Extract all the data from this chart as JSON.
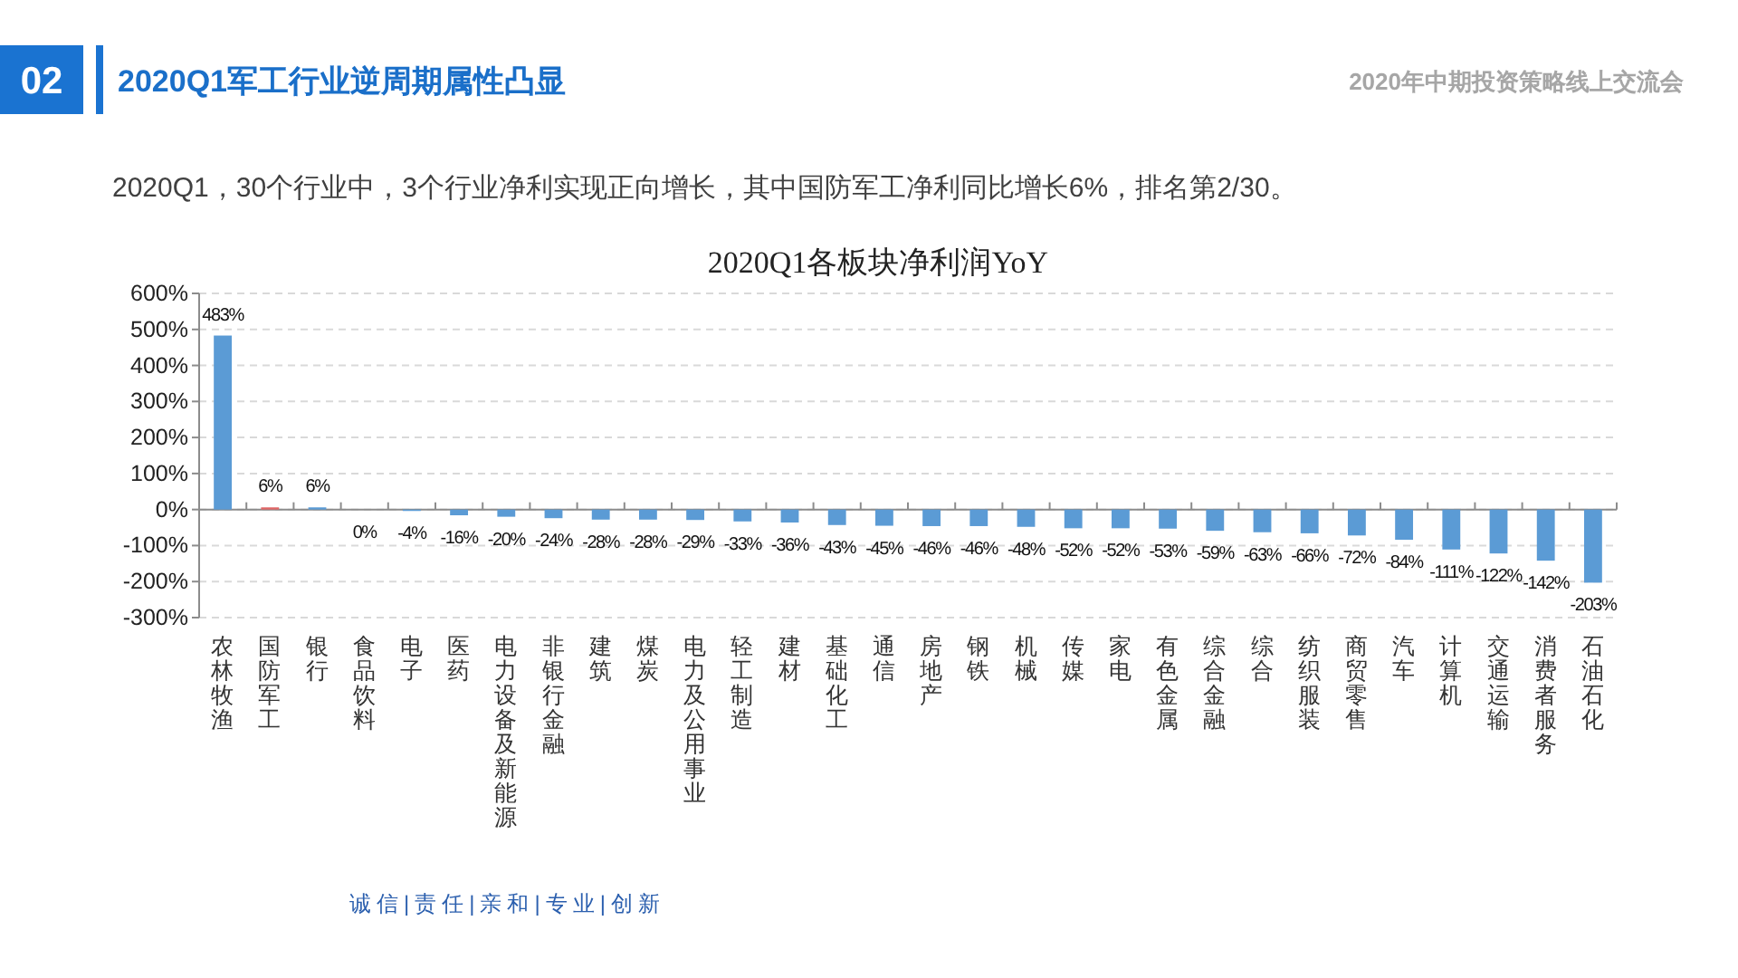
{
  "chart_data": {
    "type": "bar",
    "title": "2020Q1各板块净利润YoY",
    "subtitle": "2020Q1，30个行业中，3个行业净利实现正向增长，其中国防军工净利同比增长6%，排名第2/30。",
    "annotations": [
      "02",
      "2020Q1军工行业逆周期属性凸显",
      "2020年中期投资策略线上交流会",
      "诚信|责任|亲和|专业|创新"
    ],
    "categories": [
      "农林牧渔",
      "国防军工",
      "银行",
      "食品饮料",
      "电子",
      "医药",
      "电力设备及新能源",
      "非银行金融",
      "建筑",
      "煤炭",
      "电力及公用事业",
      "轻工制造",
      "建材",
      "基础化工",
      "通信",
      "房地产",
      "钢铁",
      "机械",
      "传媒",
      "家电",
      "有色金属",
      "综合金融",
      "综合",
      "纺织服装",
      "商贸零售",
      "汽车",
      "计算机",
      "交通运输",
      "消费者服务",
      "石油石化"
    ],
    "values": [
      483,
      6,
      6,
      0,
      -4,
      -16,
      -20,
      -24,
      -28,
      -28,
      -29,
      -33,
      -36,
      -43,
      -45,
      -46,
      -46,
      -48,
      -52,
      -52,
      -53,
      -59,
      -63,
      -66,
      -72,
      -84,
      -111,
      -122,
      -142,
      -203
    ],
    "colors": [
      "#5b9bd5",
      "#e06666",
      "#5b9bd5",
      null,
      "#5b9bd5",
      "#5b9bd5",
      "#5b9bd5",
      "#5b9bd5",
      "#5b9bd5",
      "#5b9bd5",
      "#5b9bd5",
      "#5b9bd5",
      "#5b9bd5",
      "#5b9bd5",
      "#5b9bd5",
      "#5b9bd5",
      "#5b9bd5",
      "#5b9bd5",
      "#5b9bd5",
      "#5b9bd5",
      "#5b9bd5",
      "#5b9bd5",
      "#5b9bd5",
      "#5b9bd5",
      "#5b9bd5",
      "#5b9bd5",
      "#5b9bd5",
      "#5b9bd5",
      "#5b9bd5",
      "#5b9bd5"
    ],
    "value_labels": [
      "483%",
      "6%",
      "6%",
      "0%",
      "-4%",
      "-16%",
      "-20%",
      "-24%",
      "-28%",
      "-28%",
      "-29%",
      "-33%",
      "-36%",
      "-43%",
      "-45%",
      "-46%",
      "-46%",
      "-48%",
      "-52%",
      "-52%",
      "-53%",
      "-59%",
      "-63%",
      "-66%",
      "-72%",
      "-84%",
      "-111%",
      "-122%",
      "-142%",
      "-203%"
    ],
    "ylim": [
      -300,
      600
    ],
    "yticks": [
      {
        "value": -300,
        "label": "-300%"
      },
      {
        "value": -200,
        "label": "-200%"
      },
      {
        "value": -100,
        "label": "-100%"
      },
      {
        "value": 0,
        "label": "0%"
      },
      {
        "value": 100,
        "label": "100%"
      },
      {
        "value": 200,
        "label": "200%"
      },
      {
        "value": 300,
        "label": "300%"
      },
      {
        "value": 400,
        "label": "400%"
      },
      {
        "value": 500,
        "label": "500%"
      },
      {
        "value": 600,
        "label": "600%"
      }
    ],
    "grid": "y"
  }
}
